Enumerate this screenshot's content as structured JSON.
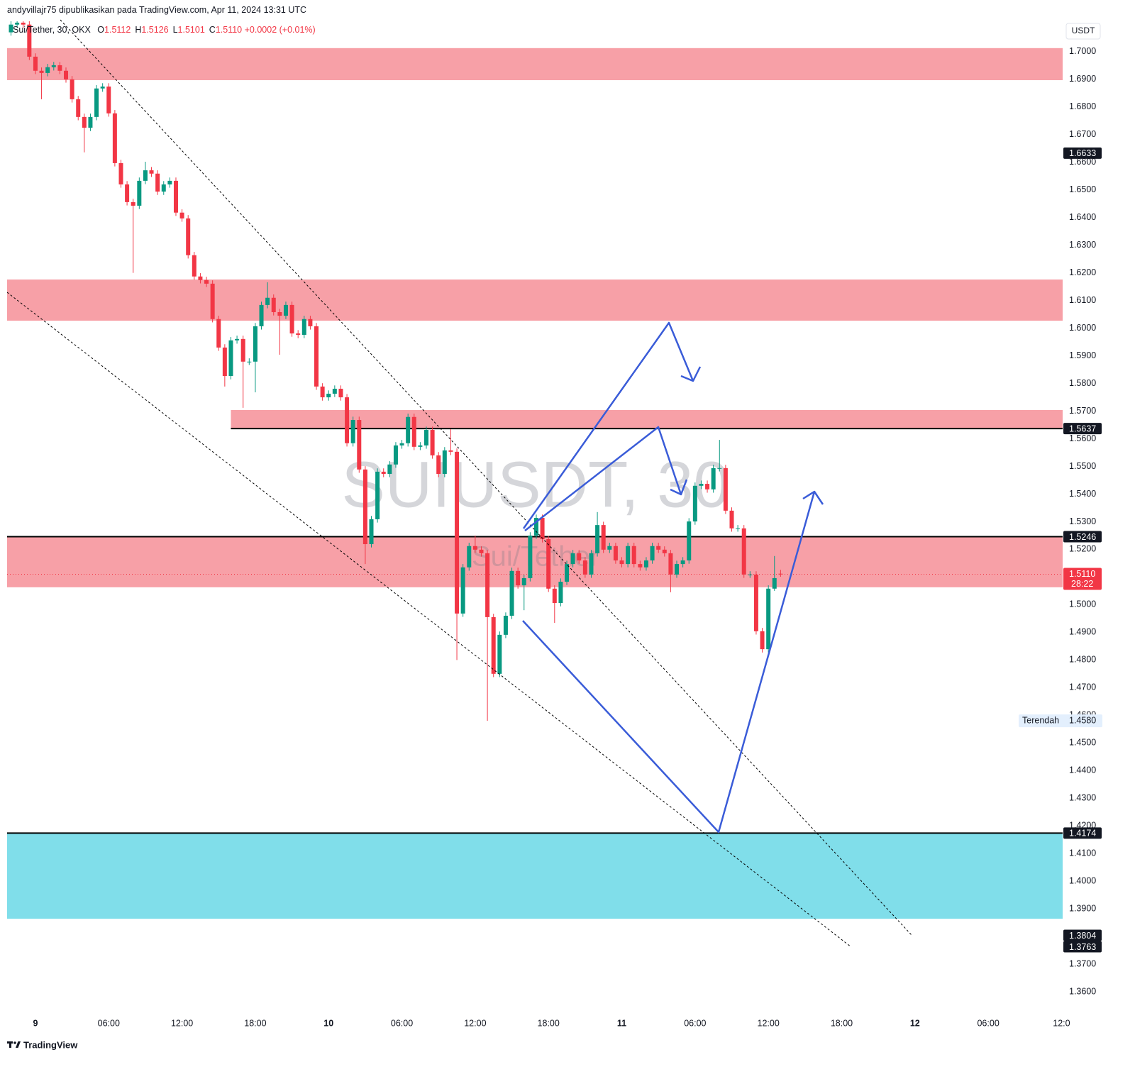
{
  "header": {
    "publisher": "andyvillajr75 dipublikasikan pada TradingView.com, Apr 11, 2024 13:31 UTC",
    "symbol": "Sui/Tether, 30, OKX",
    "ohlc": [
      {
        "key": "O",
        "value": "1.5112"
      },
      {
        "key": "H",
        "value": "1.5126"
      },
      {
        "key": "L",
        "value": "1.5101"
      },
      {
        "key": "C",
        "value": "1.5110"
      }
    ],
    "change": "+0.0002 (+0.01%)",
    "currency": "USDT"
  },
  "watermark": {
    "symbol": "SUIUSDT, 30",
    "name": "Sui/Tether"
  },
  "footer": {
    "brand": "TradingView"
  },
  "chart_data": {
    "type": "candlestick",
    "x": [
      -2,
      -1.5,
      -1,
      -0.5,
      0,
      0.5,
      1,
      1.5,
      2,
      2.5,
      3,
      3.5,
      4,
      4.5,
      5,
      5.5,
      6,
      6.5,
      7,
      7.5,
      8,
      8.5,
      9,
      9.5,
      10,
      10.5,
      11,
      11.5,
      12,
      12.5,
      13,
      13.5,
      14,
      14.5,
      15,
      15.5,
      16,
      16.5,
      17,
      17.5,
      18,
      18.5,
      19,
      19.5,
      20,
      20.5,
      21,
      21.5,
      22,
      22.5,
      23,
      23.5,
      24,
      24.5,
      25,
      25.5,
      26,
      26.5,
      27,
      27.5,
      28,
      28.5,
      29,
      29.5,
      30,
      30.5,
      31,
      31.5,
      32,
      32.5,
      33,
      33.5,
      34,
      34.5,
      35,
      35.5,
      36,
      36.5,
      37,
      37.5,
      38,
      38.5,
      39,
      39.5,
      40,
      40.5,
      41,
      41.5,
      42,
      42.5,
      43,
      43.5,
      44,
      44.5,
      45,
      45.5,
      46,
      46.5,
      47,
      47.5,
      48,
      48.5,
      49,
      49.5,
      50,
      50.5,
      51,
      51.5,
      52,
      52.5,
      53,
      53.5,
      54,
      54.5,
      55,
      55.5,
      56,
      56.5,
      57,
      57.5,
      58,
      58.5,
      59,
      59.5,
      60,
      60.5,
      61
    ],
    "open": [
      1.707,
      1.7098,
      1.7105,
      1.7098,
      1.6982,
      1.6931,
      1.6923,
      1.6944,
      1.6951,
      1.6931,
      1.69,
      1.6828,
      1.6764,
      1.6725,
      1.6764,
      1.6867,
      1.6874,
      1.6777,
      1.6597,
      1.652,
      1.6456,
      1.6443,
      1.6533,
      1.6571,
      1.6559,
      1.6494,
      1.652,
      1.6533,
      1.6418,
      1.6397,
      1.6264,
      1.6187,
      1.6174,
      1.6161,
      1.6033,
      1.593,
      1.5827,
      1.5956,
      1.5961,
      1.5879,
      1.5879,
      1.6007,
      1.6084,
      1.611,
      1.6058,
      1.6045,
      1.6084,
      1.5981,
      1.5976,
      1.6033,
      1.6007,
      1.5789,
      1.575,
      1.5763,
      1.5781,
      1.575,
      1.5584,
      1.5668,
      1.5489,
      1.5219,
      1.5309,
      1.5481,
      1.5473,
      1.5507,
      1.5576,
      1.5584,
      1.5679,
      1.5571,
      1.5576,
      1.5632,
      1.554,
      1.5473,
      1.5558,
      1.5553,
      1.4968,
      1.5135,
      1.5212,
      1.5199,
      1.5186,
      1.4955,
      1.475,
      1.4891,
      1.496,
      1.5122,
      1.507,
      1.5096,
      1.525,
      1.5314,
      1.5237,
      1.5058,
      1.5006,
      1.5083,
      1.5147,
      1.5186,
      1.516,
      1.5109,
      1.5186,
      1.5288,
      1.5199,
      1.5212,
      1.516,
      1.5147,
      1.5212,
      1.5147,
      1.5135,
      1.516,
      1.5212,
      1.5199,
      1.5186,
      1.5109,
      1.5147,
      1.516,
      1.5301,
      1.543,
      1.5437,
      1.5417,
      1.5494,
      1.5494,
      1.534,
      1.5276,
      1.5276,
      1.5109,
      1.5109,
      1.4904,
      1.4839,
      1.5058,
      1.5112
    ],
    "high": [
      1.711,
      1.7117,
      1.7117,
      1.711,
      1.6994,
      1.6943,
      1.6956,
      1.6963,
      1.6963,
      1.6943,
      1.6912,
      1.684,
      1.6776,
      1.6776,
      1.6879,
      1.6886,
      1.6886,
      1.6789,
      1.6609,
      1.6532,
      1.6468,
      1.6545,
      1.6602,
      1.6583,
      1.6571,
      1.6532,
      1.6545,
      1.6545,
      1.643,
      1.6409,
      1.6276,
      1.6199,
      1.6186,
      1.6173,
      1.6045,
      1.5942,
      1.5968,
      1.5973,
      1.5973,
      1.5891,
      1.6019,
      1.6096,
      1.6166,
      1.6122,
      1.607,
      1.6096,
      1.6096,
      1.5993,
      1.6045,
      1.6045,
      1.6019,
      1.5801,
      1.5775,
      1.5793,
      1.5793,
      1.5762,
      1.568,
      1.568,
      1.5501,
      1.5321,
      1.5493,
      1.5493,
      1.5519,
      1.5588,
      1.5596,
      1.5691,
      1.5691,
      1.5588,
      1.5644,
      1.5644,
      1.5552,
      1.557,
      1.5635,
      1.5565,
      1.5147,
      1.5224,
      1.525,
      1.5211,
      1.5198,
      1.4967,
      1.4903,
      1.4972,
      1.5134,
      1.5134,
      1.5108,
      1.5262,
      1.5326,
      1.5326,
      1.5249,
      1.507,
      1.5095,
      1.5159,
      1.5198,
      1.5198,
      1.5172,
      1.5198,
      1.5335,
      1.53,
      1.5224,
      1.5224,
      1.5172,
      1.5224,
      1.5224,
      1.5159,
      1.5172,
      1.5224,
      1.5224,
      1.5211,
      1.5198,
      1.5159,
      1.5172,
      1.5313,
      1.5442,
      1.5449,
      1.5449,
      1.5506,
      1.5596,
      1.5506,
      1.5352,
      1.5288,
      1.5288,
      1.5121,
      1.5121,
      1.4916,
      1.507,
      1.5176,
      1.5126
    ],
    "low": [
      1.7058,
      1.7086,
      1.7086,
      1.697,
      1.6919,
      1.6828,
      1.6911,
      1.6932,
      1.6919,
      1.6888,
      1.6816,
      1.6752,
      1.6636,
      1.6713,
      1.6752,
      1.6855,
      1.6765,
      1.6585,
      1.6508,
      1.6444,
      1.62,
      1.6431,
      1.6521,
      1.6547,
      1.6482,
      1.6482,
      1.6508,
      1.6406,
      1.6385,
      1.6252,
      1.6175,
      1.6162,
      1.6149,
      1.6021,
      1.5918,
      1.5789,
      1.5815,
      1.5944,
      1.5712,
      1.5867,
      1.5768,
      1.5995,
      1.6072,
      1.6046,
      1.5904,
      1.6033,
      1.5969,
      1.5964,
      1.5964,
      1.5995,
      1.5777,
      1.5738,
      1.5738,
      1.5751,
      1.5738,
      1.5572,
      1.5572,
      1.5477,
      1.5147,
      1.5207,
      1.5297,
      1.5461,
      1.5461,
      1.5495,
      1.5564,
      1.5572,
      1.5559,
      1.5559,
      1.5564,
      1.5528,
      1.5461,
      1.5461,
      1.5541,
      1.48,
      1.4956,
      1.5123,
      1.5187,
      1.5174,
      1.458,
      1.4738,
      1.4738,
      1.4879,
      1.4948,
      1.5058,
      1.498,
      1.5084,
      1.5238,
      1.5225,
      1.5046,
      1.4934,
      1.4994,
      1.5071,
      1.5135,
      1.5148,
      1.5097,
      1.5097,
      1.5174,
      1.5187,
      1.5187,
      1.5148,
      1.5135,
      1.5135,
      1.5135,
      1.5123,
      1.5123,
      1.5148,
      1.5187,
      1.5174,
      1.5045,
      1.5097,
      1.5135,
      1.5148,
      1.5289,
      1.5418,
      1.5405,
      1.5405,
      1.5482,
      1.5328,
      1.5264,
      1.5264,
      1.5097,
      1.5097,
      1.4892,
      1.4827,
      1.4827,
      1.505,
      1.5101
    ],
    "close": [
      1.7098,
      1.7105,
      1.7098,
      1.6982,
      1.6931,
      1.6923,
      1.6944,
      1.6951,
      1.6931,
      1.69,
      1.6828,
      1.6764,
      1.6725,
      1.6764,
      1.6867,
      1.6874,
      1.6777,
      1.6597,
      1.652,
      1.6456,
      1.6443,
      1.6533,
      1.6571,
      1.6559,
      1.6494,
      1.652,
      1.6533,
      1.6418,
      1.6397,
      1.6264,
      1.6187,
      1.6174,
      1.6161,
      1.6033,
      1.593,
      1.5827,
      1.5956,
      1.5961,
      1.5879,
      1.5879,
      1.6007,
      1.6084,
      1.611,
      1.6058,
      1.6045,
      1.6084,
      1.5981,
      1.5976,
      1.6033,
      1.6007,
      1.5789,
      1.575,
      1.5763,
      1.5781,
      1.575,
      1.5584,
      1.5668,
      1.5489,
      1.5219,
      1.5309,
      1.5481,
      1.5473,
      1.5507,
      1.5576,
      1.5584,
      1.5679,
      1.5571,
      1.5576,
      1.5632,
      1.554,
      1.5473,
      1.5558,
      1.5553,
      1.4968,
      1.5135,
      1.5212,
      1.5199,
      1.5186,
      1.4955,
      1.475,
      1.4891,
      1.496,
      1.5122,
      1.507,
      1.5096,
      1.525,
      1.5314,
      1.5237,
      1.5058,
      1.5006,
      1.5083,
      1.5147,
      1.5186,
      1.516,
      1.5109,
      1.5186,
      1.5288,
      1.5199,
      1.5212,
      1.516,
      1.5147,
      1.5212,
      1.5147,
      1.5135,
      1.516,
      1.5212,
      1.5199,
      1.5186,
      1.5109,
      1.5147,
      1.516,
      1.5301,
      1.543,
      1.5437,
      1.5417,
      1.5494,
      1.5494,
      1.534,
      1.5276,
      1.5276,
      1.5109,
      1.5109,
      1.4904,
      1.4839,
      1.5058,
      1.5096,
      1.511
    ],
    "up_color": "#089981",
    "down_color": "#f23645",
    "grid": true,
    "xlim": [
      -2.32,
      84.09
    ],
    "xticks": [
      {
        "value": 0,
        "label": "9"
      },
      {
        "value": 6,
        "label": "06:00"
      },
      {
        "value": 12,
        "label": "12:00"
      },
      {
        "value": 18,
        "label": "18:00"
      },
      {
        "value": 24,
        "label": "10"
      },
      {
        "value": 30,
        "label": "06:00"
      },
      {
        "value": 36,
        "label": "12:00"
      },
      {
        "value": 42,
        "label": "18:00"
      },
      {
        "value": 48,
        "label": "11"
      },
      {
        "value": 54,
        "label": "06:00"
      },
      {
        "value": 60,
        "label": "12:00"
      },
      {
        "value": 66,
        "label": "18:00"
      },
      {
        "value": 72,
        "label": "12"
      },
      {
        "value": 78,
        "label": "06:00"
      },
      {
        "value": 84,
        "label": "12:0"
      }
    ],
    "ylim": [
      1.3518,
      1.711
    ],
    "yticks": [
      {
        "value": 1.7,
        "label": "1.7000"
      },
      {
        "value": 1.69,
        "label": "1.6900"
      },
      {
        "value": 1.68,
        "label": "1.6800"
      },
      {
        "value": 1.67,
        "label": "1.6700"
      },
      {
        "value": 1.66,
        "label": "1.6600"
      },
      {
        "value": 1.65,
        "label": "1.6500"
      },
      {
        "value": 1.64,
        "label": "1.6400"
      },
      {
        "value": 1.63,
        "label": "1.6300"
      },
      {
        "value": 1.62,
        "label": "1.6200"
      },
      {
        "value": 1.61,
        "label": "1.6100"
      },
      {
        "value": 1.6,
        "label": "1.6000"
      },
      {
        "value": 1.59,
        "label": "1.5900"
      },
      {
        "value": 1.58,
        "label": "1.5800"
      },
      {
        "value": 1.57,
        "label": "1.5700"
      },
      {
        "value": 1.56,
        "label": "1.5600"
      },
      {
        "value": 1.55,
        "label": "1.5500"
      },
      {
        "value": 1.54,
        "label": "1.5400"
      },
      {
        "value": 1.53,
        "label": "1.5300"
      },
      {
        "value": 1.52,
        "label": "1.5200"
      },
      {
        "value": 1.5,
        "label": "1.5000"
      },
      {
        "value": 1.49,
        "label": "1.4900"
      },
      {
        "value": 1.48,
        "label": "1.4800"
      },
      {
        "value": 1.47,
        "label": "1.4700"
      },
      {
        "value": 1.46,
        "label": "1.4600"
      },
      {
        "value": 1.45,
        "label": "1.4500"
      },
      {
        "value": 1.44,
        "label": "1.4400"
      },
      {
        "value": 1.43,
        "label": "1.4300"
      },
      {
        "value": 1.42,
        "label": "1.4200"
      },
      {
        "value": 1.41,
        "label": "1.4100"
      },
      {
        "value": 1.4,
        "label": "1.4000"
      },
      {
        "value": 1.39,
        "label": "1.3900"
      },
      {
        "value": 1.37,
        "label": "1.3700"
      },
      {
        "value": 1.36,
        "label": "1.3600"
      }
    ],
    "zones": [
      {
        "from": 1.6897,
        "to": 1.7013,
        "color": "#f7a0a7"
      },
      {
        "from": 1.6027,
        "to": 1.6176,
        "color": "#f7a0a7"
      },
      {
        "from": 1.5635,
        "to": 1.5704,
        "color": "#f7a0a7",
        "start": 16
      },
      {
        "from": 1.5063,
        "to": 1.5246,
        "color": "#f7a0a7"
      },
      {
        "from": 1.3864,
        "to": 1.4174,
        "color": "#80deea"
      }
    ],
    "lines": [
      {
        "value": 1.5637,
        "start": 16
      },
      {
        "value": 1.5246
      },
      {
        "value": 1.4174
      }
    ],
    "price_labels": [
      1.6633,
      1.5637,
      1.5246,
      1.4174,
      1.3804,
      1.3763
    ],
    "last": {
      "value": 1.511,
      "label": "1.5110",
      "countdown": "28:22"
    },
    "low_label": {
      "name": "Terendah",
      "value": 1.458,
      "label": "1.4580"
    }
  }
}
